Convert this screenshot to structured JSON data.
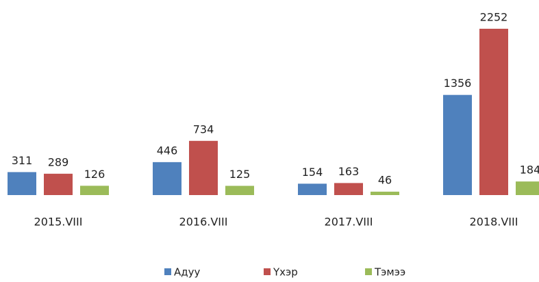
{
  "chart_data": {
    "type": "bar",
    "categories": [
      "2015.VIII",
      "2016.VIII",
      "2017.VIII",
      "2018.VIII"
    ],
    "series": [
      {
        "name": "Адуу",
        "color": "#4f81bd",
        "values": [
          311,
          446,
          154,
          1356
        ]
      },
      {
        "name": "Үхэр",
        "color": "#c0504d",
        "values": [
          289,
          734,
          163,
          2252
        ]
      },
      {
        "name": "Тэмээ",
        "color": "#9bbb59",
        "values": [
          126,
          125,
          46,
          184
        ]
      }
    ],
    "legend": "bottom"
  }
}
